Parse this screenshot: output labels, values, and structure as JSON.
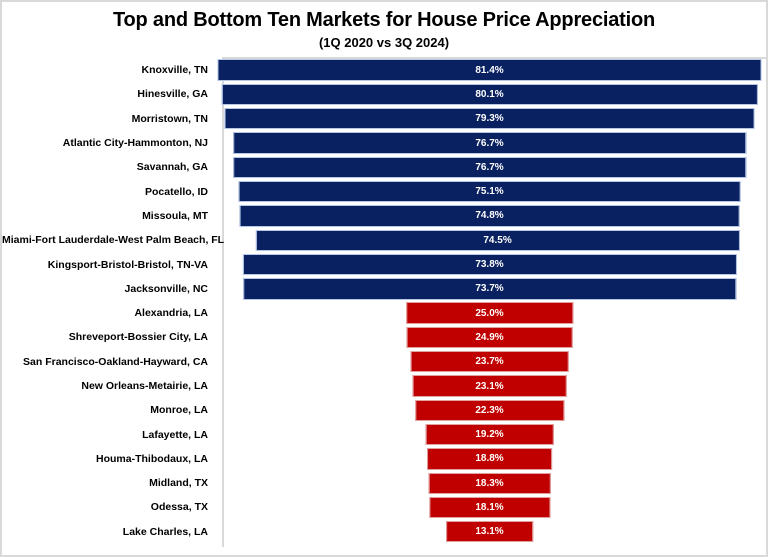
{
  "chart_data": {
    "type": "bar",
    "orientation": "horizontal",
    "style": "centered-funnel",
    "title": "Top and Bottom Ten Markets for House Price Appreciation",
    "subtitle": "(1Q 2020 vs 3Q 2024)",
    "axis_max_percent": 82,
    "grid": false,
    "legend": false,
    "frame_color": "#d9d9d9",
    "groups": {
      "top": {
        "fill": "#0a2161",
        "border": "#b4c7e7"
      },
      "bottom": {
        "fill": "#c00000",
        "border": "#dfa09e"
      }
    },
    "rows": [
      {
        "label": "Knoxville, TN",
        "value": 81.4,
        "display": "81.4%",
        "group": "top"
      },
      {
        "label": "Hinesville, GA",
        "value": 80.1,
        "display": "80.1%",
        "group": "top"
      },
      {
        "label": "Morristown, TN",
        "value": 79.3,
        "display": "79.3%",
        "group": "top"
      },
      {
        "label": "Atlantic City-Hammonton, NJ",
        "value": 76.7,
        "display": "76.7%",
        "group": "top"
      },
      {
        "label": "Savannah, GA",
        "value": 76.7,
        "display": "76.7%",
        "group": "top"
      },
      {
        "label": "Pocatello, ID",
        "value": 75.1,
        "display": "75.1%",
        "group": "top"
      },
      {
        "label": "Missoula, MT",
        "value": 74.8,
        "display": "74.8%",
        "group": "top"
      },
      {
        "label": "Miami-Fort Lauderdale-West Palm Beach, FL",
        "value": 74.5,
        "display": "74.5%",
        "group": "top"
      },
      {
        "label": "Kingsport-Bristol-Bristol, TN-VA",
        "value": 73.8,
        "display": "73.8%",
        "group": "top"
      },
      {
        "label": "Jacksonville, NC",
        "value": 73.7,
        "display": "73.7%",
        "group": "top"
      },
      {
        "label": "Alexandria, LA",
        "value": 25.0,
        "display": "25.0%",
        "group": "bottom"
      },
      {
        "label": "Shreveport-Bossier City, LA",
        "value": 24.9,
        "display": "24.9%",
        "group": "bottom"
      },
      {
        "label": "San Francisco-Oakland-Hayward, CA",
        "value": 23.7,
        "display": "23.7%",
        "group": "bottom"
      },
      {
        "label": "New Orleans-Metairie, LA",
        "value": 23.1,
        "display": "23.1%",
        "group": "bottom"
      },
      {
        "label": "Monroe, LA",
        "value": 22.3,
        "display": "22.3%",
        "group": "bottom"
      },
      {
        "label": "Lafayette, LA",
        "value": 19.2,
        "display": "19.2%",
        "group": "bottom"
      },
      {
        "label": "Houma-Thibodaux, LA",
        "value": 18.8,
        "display": "18.8%",
        "group": "bottom"
      },
      {
        "label": "Midland, TX",
        "value": 18.3,
        "display": "18.3%",
        "group": "bottom"
      },
      {
        "label": "Odessa, TX",
        "value": 18.1,
        "display": "18.1%",
        "group": "bottom"
      },
      {
        "label": "Lake Charles, LA",
        "value": 13.1,
        "display": "13.1%",
        "group": "bottom"
      }
    ]
  }
}
